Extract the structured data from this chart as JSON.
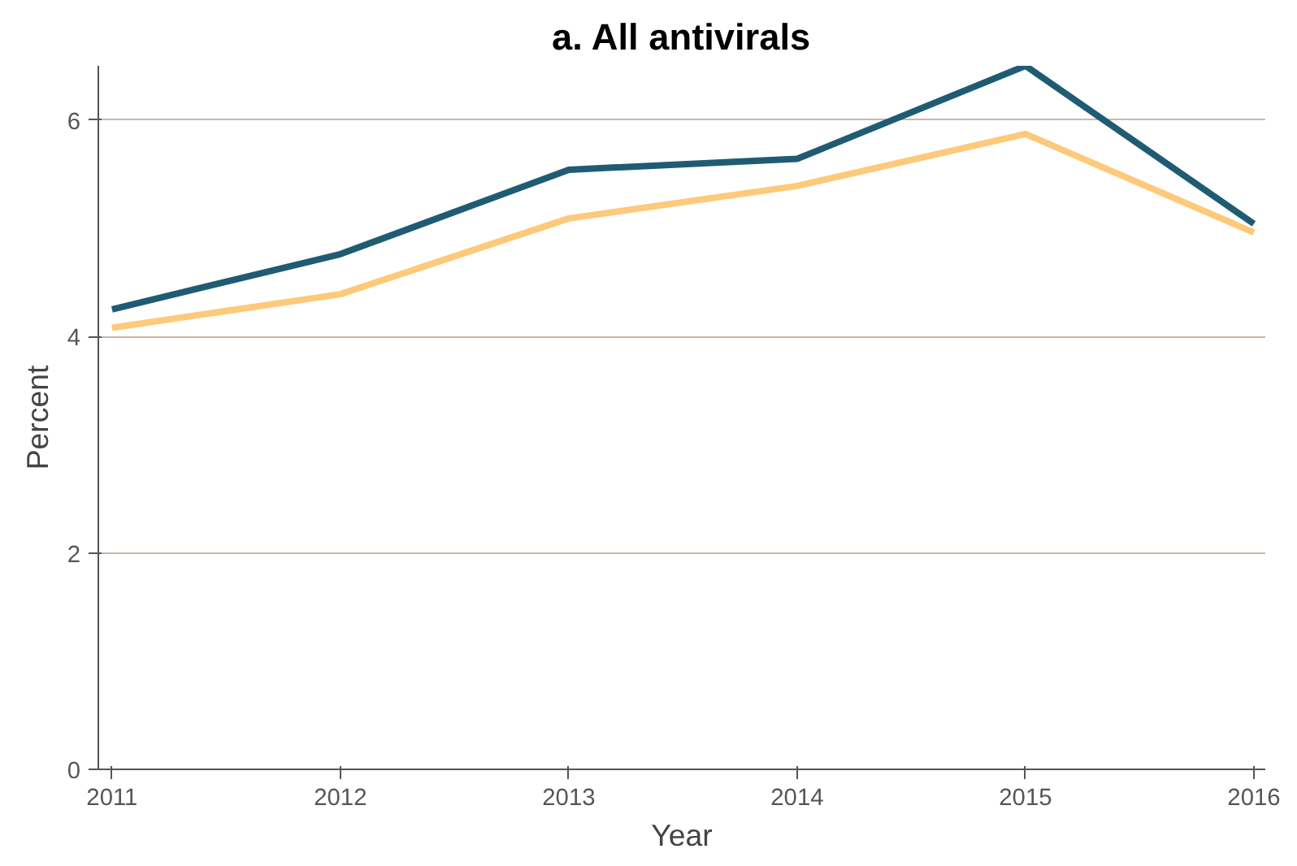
{
  "chart_data": {
    "type": "line",
    "title": "a. All antivirals",
    "xlabel": "Year",
    "ylabel": "Percent",
    "x": [
      2011,
      2012,
      2013,
      2014,
      2015,
      2016
    ],
    "series": [
      {
        "color": "#1f5c73",
        "values": [
          4.25,
          4.76,
          5.54,
          5.64,
          6.5,
          5.04
        ]
      },
      {
        "color": "#fdc97a",
        "values": [
          4.08,
          4.39,
          5.09,
          5.39,
          5.87,
          4.96
        ]
      }
    ],
    "xlim": [
      2010.94,
      2016.05
    ],
    "xticks": [
      2011,
      2012,
      2013,
      2014,
      2015,
      2016
    ],
    "ylim": [
      0,
      6.5
    ],
    "yticks": [
      0,
      2,
      4,
      6
    ],
    "grid": "y",
    "marker": "none",
    "line_style": "solid"
  }
}
